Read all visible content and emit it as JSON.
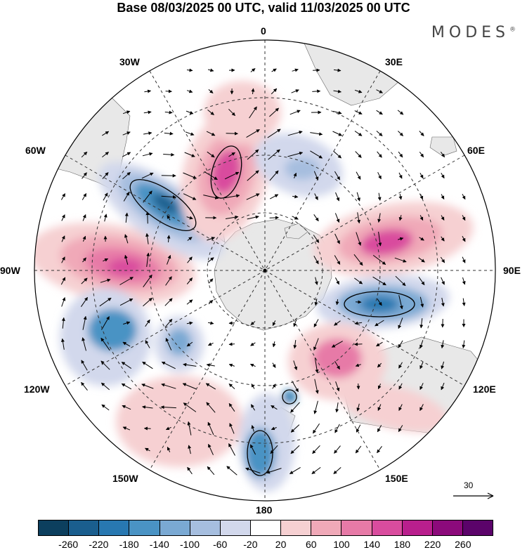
{
  "title": "Base 08/03/2025 00 UTC, valid 11/03/2025 00 UTC",
  "brand": "MODES",
  "brand_mark": "®",
  "longitude_labels": [
    "0",
    "30E",
    "60E",
    "90E",
    "120E",
    "150E",
    "180",
    "150W",
    "120W",
    "90W",
    "60W",
    "30W"
  ],
  "reference_vector": {
    "label": "30",
    "icon": "right-arrow-icon"
  },
  "colorbar": {
    "tick_labels": [
      "-260",
      "-220",
      "-180",
      "-140",
      "-100",
      "-60",
      "-20",
      "20",
      "60",
      "100",
      "140",
      "180",
      "220",
      "260"
    ],
    "colors": [
      "#0c3f5e",
      "#1a5e8e",
      "#2878b1",
      "#4a93c4",
      "#7aa9d3",
      "#a6bedf",
      "#d2d8ec",
      "#ffffff",
      "#f6d0d2",
      "#f0a9b8",
      "#e77aa7",
      "#d94c9e",
      "#b91f8d",
      "#8c0a7b",
      "#5b036a"
    ]
  },
  "palette": {
    "land": "#e8e8e8",
    "grid": "#333333",
    "border": "#000000"
  }
}
